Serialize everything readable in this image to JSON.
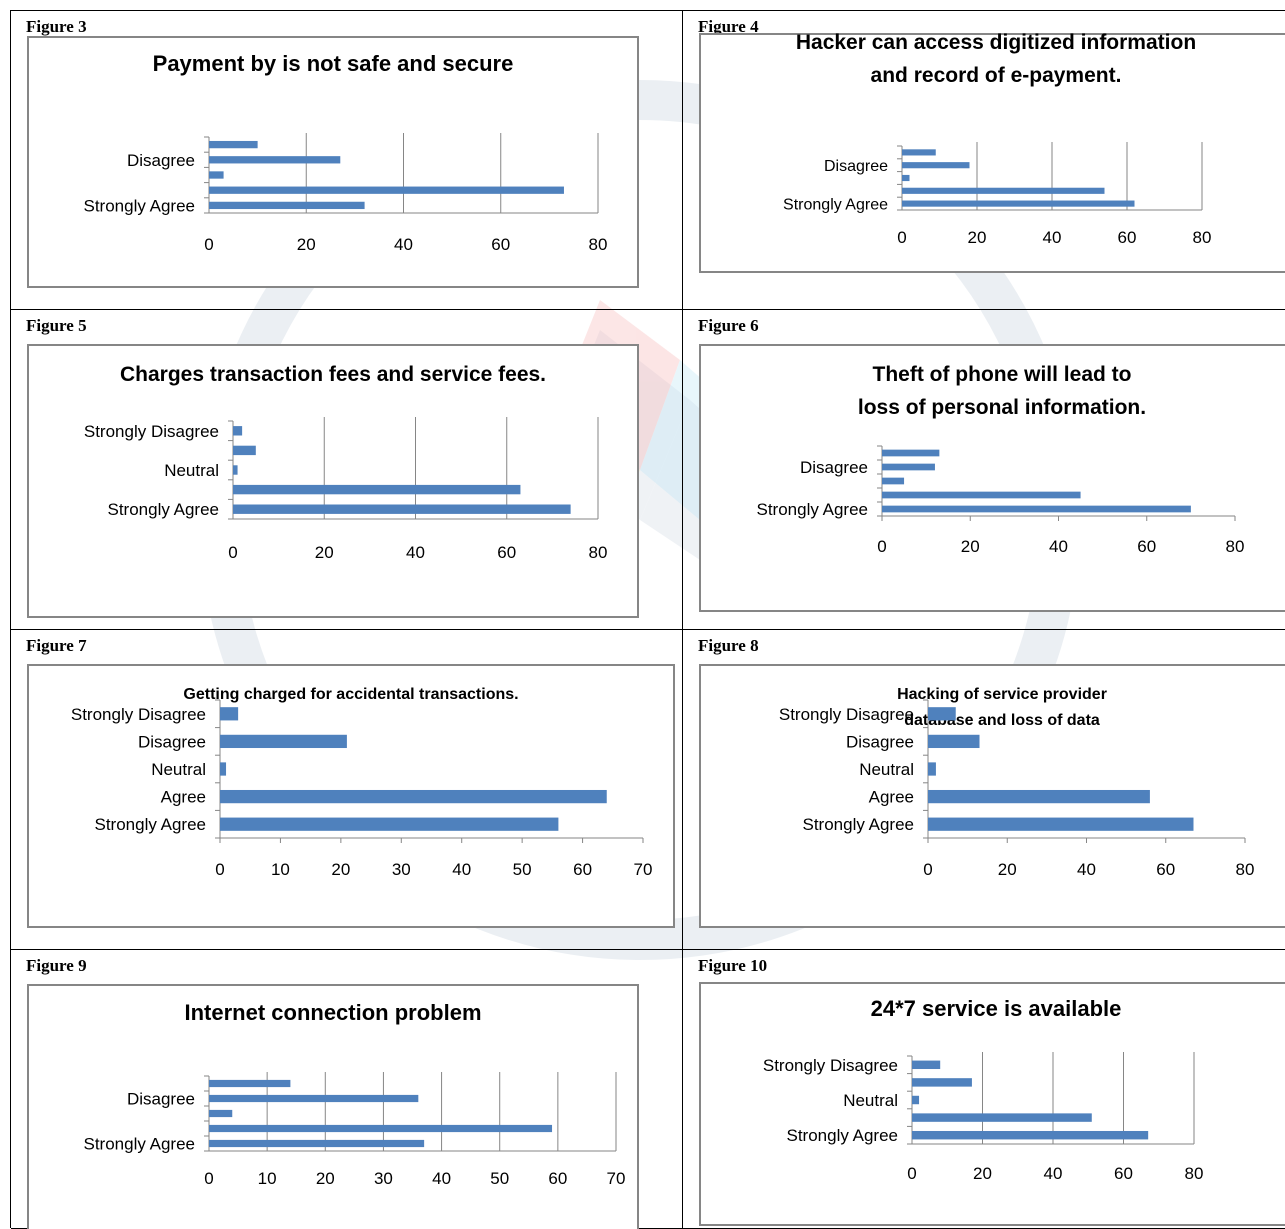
{
  "chart_data": [
    {
      "figure_label": "Figure 3",
      "type": "bar",
      "orientation": "horizontal",
      "title": "Payment by is not safe and secure",
      "category_labels": [
        "Strongly Agree",
        "",
        "",
        "Disagree",
        ""
      ],
      "values": [
        32,
        73,
        3,
        27,
        10
      ],
      "xlim": [
        0,
        80
      ],
      "xticks": [
        0,
        20,
        40,
        60,
        80
      ],
      "grid": true,
      "bar_color": "#4F81BD"
    },
    {
      "figure_label": "Figure 4",
      "type": "bar",
      "orientation": "horizontal",
      "title": "Hacker can access digitized information and record of e-payment.",
      "category_labels": [
        "Strongly Agree",
        "",
        "",
        "Disagree",
        ""
      ],
      "values": [
        62,
        54,
        2,
        18,
        9
      ],
      "xlim": [
        0,
        80
      ],
      "xticks": [
        0,
        20,
        40,
        60,
        80
      ],
      "grid": true,
      "bar_color": "#4F81BD"
    },
    {
      "figure_label": "Figure 5",
      "type": "bar",
      "orientation": "horizontal",
      "title": "Charges transaction fees and service fees.",
      "category_labels": [
        "Strongly Agree",
        "",
        "Neutral",
        "",
        "Strongly Disagree"
      ],
      "values": [
        74,
        63,
        1,
        5,
        2
      ],
      "xlim": [
        0,
        80
      ],
      "xticks": [
        0,
        20,
        40,
        60,
        80
      ],
      "grid": true,
      "bar_color": "#4F81BD"
    },
    {
      "figure_label": "Figure 6",
      "type": "bar",
      "orientation": "horizontal",
      "title": "Theft of phone will lead to loss of personal information.",
      "category_labels": [
        "Strongly Agree",
        "",
        "",
        "Disagree",
        ""
      ],
      "values": [
        70,
        45,
        5,
        12,
        13
      ],
      "xlim": [
        0,
        80
      ],
      "xticks": [
        0,
        20,
        40,
        60,
        80
      ],
      "grid": false,
      "bar_color": "#4F81BD"
    },
    {
      "figure_label": "Figure 7",
      "type": "bar",
      "orientation": "horizontal",
      "title": "Getting charged for accidental transactions.",
      "category_labels": [
        "Strongly Agree",
        "Agree",
        "Neutral",
        "Disagree",
        "Strongly Disagree"
      ],
      "values": [
        56,
        64,
        1,
        21,
        3
      ],
      "xlim": [
        0,
        70
      ],
      "xticks": [
        0,
        10,
        20,
        30,
        40,
        50,
        60,
        70
      ],
      "grid": false,
      "bar_color": "#4F81BD"
    },
    {
      "figure_label": "Figure 8",
      "type": "bar",
      "orientation": "horizontal",
      "title": "Hacking of service provider database and loss of data",
      "category_labels": [
        "Strongly Agree",
        "Agree",
        "Neutral",
        "Disagree",
        "Strongly Disagree"
      ],
      "values": [
        67,
        56,
        2,
        13,
        7
      ],
      "xlim": [
        0,
        80
      ],
      "xticks": [
        0,
        20,
        40,
        60,
        80
      ],
      "grid": false,
      "bar_color": "#4F81BD"
    },
    {
      "figure_label": "Figure 9",
      "type": "bar",
      "orientation": "horizontal",
      "title": "Internet connection problem",
      "category_labels": [
        "Strongly Agree",
        "",
        "",
        "Disagree",
        ""
      ],
      "values": [
        37,
        59,
        4,
        36,
        14
      ],
      "xlim": [
        0,
        70
      ],
      "xticks": [
        0,
        10,
        20,
        30,
        40,
        50,
        60,
        70
      ],
      "grid": true,
      "bar_color": "#4F81BD"
    },
    {
      "figure_label": "Figure 10",
      "type": "bar",
      "orientation": "horizontal",
      "title": "24*7 service is available",
      "category_labels": [
        "Strongly Agree",
        "",
        "Neutral",
        "",
        "Strongly Disagree"
      ],
      "values": [
        67,
        51,
        2,
        17,
        8
      ],
      "xlim": [
        0,
        80
      ],
      "xticks": [
        0,
        20,
        40,
        60,
        80
      ],
      "grid": true,
      "bar_color": "#4F81BD"
    }
  ]
}
